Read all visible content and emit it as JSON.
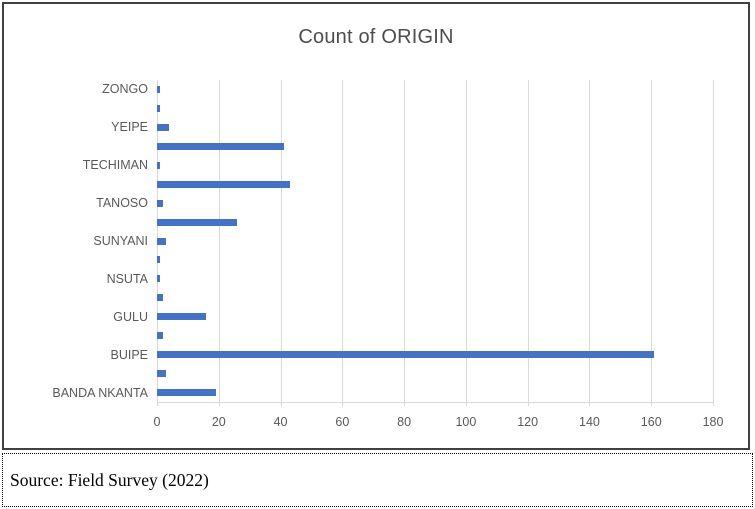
{
  "chart_data": {
    "type": "bar",
    "orientation": "horizontal",
    "title": "Count of ORIGIN",
    "rows": [
      {
        "label": "ZONGO",
        "value": 1
      },
      {
        "label": "",
        "value": 1
      },
      {
        "label": "YEIPE",
        "value": 4
      },
      {
        "label": "",
        "value": 41
      },
      {
        "label": "TECHIMAN",
        "value": 1
      },
      {
        "label": "",
        "value": 43
      },
      {
        "label": "TANOSO",
        "value": 2
      },
      {
        "label": "",
        "value": 26
      },
      {
        "label": "SUNYANI",
        "value": 3
      },
      {
        "label": "",
        "value": 1
      },
      {
        "label": "NSUTA",
        "value": 1
      },
      {
        "label": "",
        "value": 2
      },
      {
        "label": "GULU",
        "value": 16
      },
      {
        "label": "",
        "value": 2
      },
      {
        "label": "BUIPE",
        "value": 161
      },
      {
        "label": "",
        "value": 3
      },
      {
        "label": "BANDA NKANTA",
        "value": 19
      }
    ],
    "xlabel": "",
    "ylabel": "",
    "xlim": [
      0,
      180
    ],
    "xticks": [
      0,
      20,
      40,
      60,
      80,
      100,
      120,
      140,
      160,
      180
    ],
    "grid": "vertical",
    "legend": "none",
    "colors": {
      "bar": "#4472C4",
      "gridline": "#D9D9D9",
      "axis_text": "#595959",
      "title_text": "#4d4d4d"
    }
  },
  "note": {
    "text": "Source: Field Survey (2022)"
  }
}
